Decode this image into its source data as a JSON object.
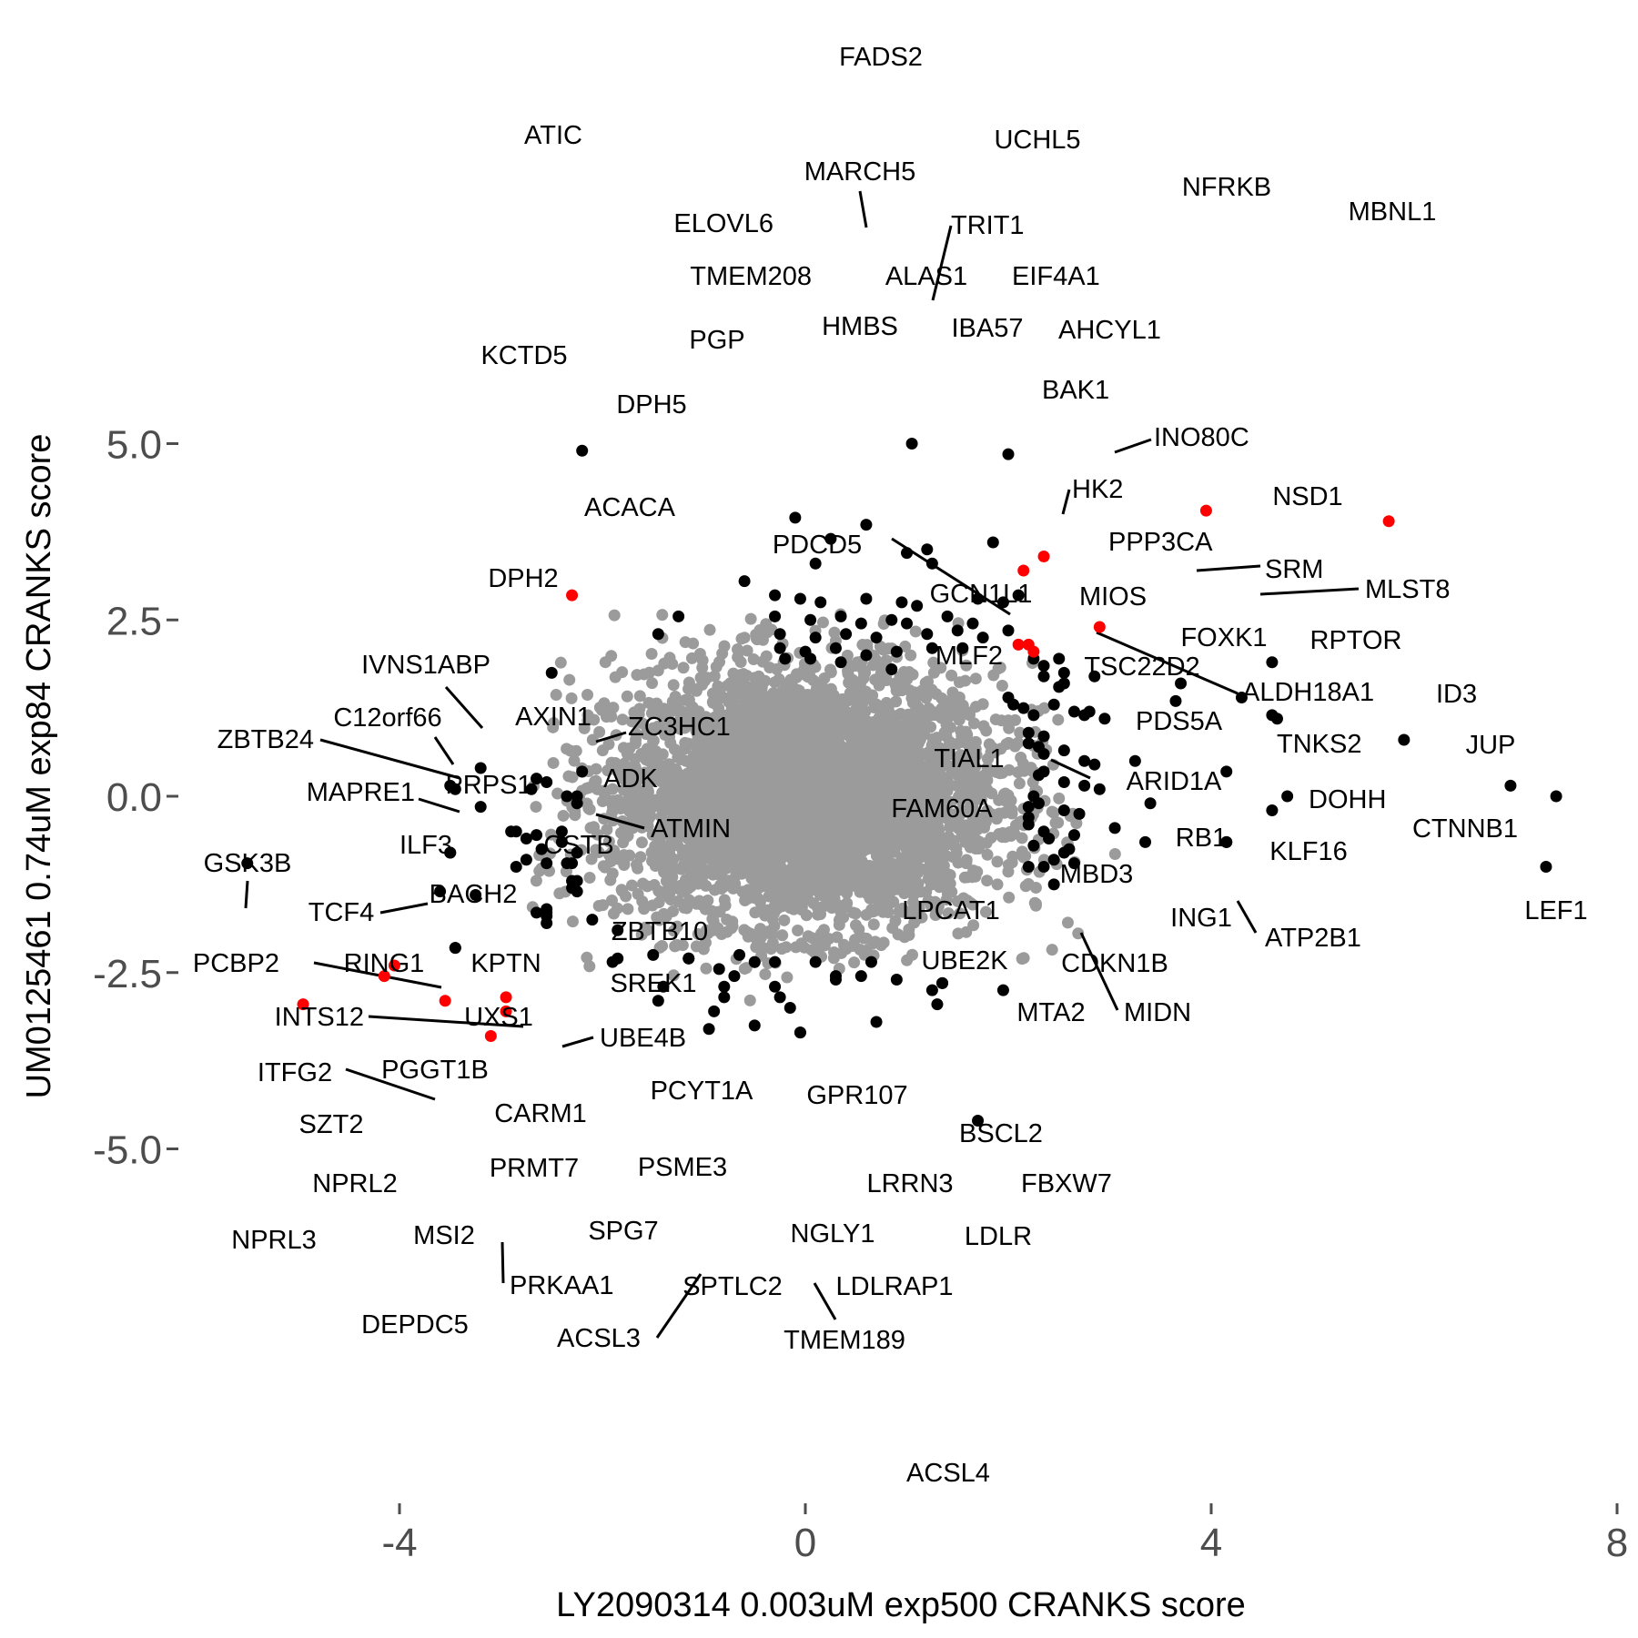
{
  "chart_data": {
    "type": "scatter",
    "xlabel": "LY2090314 0.003uM exp500 CRANKS score",
    "ylabel": "UM0125461 0.74uM exp84 CRANKS score",
    "xlim": [
      -6.0,
      8.0
    ],
    "ylim": [
      -5.0,
      5.0
    ],
    "x_ticks": [
      -4,
      0,
      4,
      8
    ],
    "x_tick_labels": [
      "-4",
      "0",
      "4",
      "8"
    ],
    "y_ticks": [
      5.0,
      2.5,
      0.0,
      -2.5,
      -5.0
    ],
    "y_tick_labels": [
      "5.0",
      "2.5",
      "0.0",
      "-2.5",
      "-5.0"
    ],
    "grid": false,
    "colors": {
      "background_points": "#9b9b9b",
      "highlight": "#000000",
      "highlight_red": "#ff0000"
    },
    "background_cloud": {
      "note_none": "",
      "center": [
        0.0,
        0.0
      ],
      "sd": [
        0.95,
        0.9
      ],
      "count": 4200
    },
    "labeled_points": [
      {
        "label": "FADS2",
        "x": 1.05,
        "y": 5.0,
        "color": "black"
      },
      {
        "label": "ATIC",
        "x": -2.2,
        "y": 4.9,
        "color": "black"
      },
      {
        "label": "UCHL5",
        "x": 2.0,
        "y": 4.85,
        "color": "black"
      },
      {
        "label": "NFRKB",
        "x": 3.95,
        "y": 4.05,
        "color": "red"
      },
      {
        "label": "MBNL1",
        "x": 5.75,
        "y": 3.9,
        "color": "red"
      },
      {
        "label": "MARCH5",
        "x": 0.6,
        "y": 3.85,
        "color": "black"
      },
      {
        "label": "ELOVL6",
        "x": -0.1,
        "y": 3.95,
        "color": "black"
      },
      {
        "label": "TRIT1",
        "x": 1.2,
        "y": 3.5,
        "color": "black"
      },
      {
        "label": "TMEM208",
        "x": 0.25,
        "y": 3.65,
        "color": "black"
      },
      {
        "label": "ALAS1",
        "x": 1.0,
        "y": 3.45,
        "color": "black"
      },
      {
        "label": "EIF4A1",
        "x": 1.85,
        "y": 3.6,
        "color": "black"
      },
      {
        "label": "HMBS",
        "x": 0.1,
        "y": 3.3,
        "color": "black"
      },
      {
        "label": "IBA57",
        "x": 1.25,
        "y": 3.3,
        "color": "black"
      },
      {
        "label": "AHCYL1",
        "x": 2.35,
        "y": 3.4,
        "color": "red"
      },
      {
        "label": "PGP",
        "x": -0.6,
        "y": 3.05,
        "color": "black"
      },
      {
        "label": "KCTD5",
        "x": -2.3,
        "y": 2.85,
        "color": "red"
      },
      {
        "label": "BAK1",
        "x": 2.1,
        "y": 2.85,
        "color": "black"
      },
      {
        "label": "DPH5",
        "x": -1.25,
        "y": 2.55,
        "color": "black"
      },
      {
        "label": "INO80C",
        "x": 2.9,
        "y": 2.4,
        "color": "red"
      },
      {
        "label": "HK2",
        "x": 2.5,
        "y": 1.95,
        "color": "black"
      },
      {
        "label": "NSD1",
        "x": 4.6,
        "y": 1.9,
        "color": "black"
      },
      {
        "label": "ACACA",
        "x": -1.45,
        "y": 2.3,
        "color": "black"
      },
      {
        "label": "PPP3CA",
        "x": 2.85,
        "y": 1.7,
        "color": "black"
      },
      {
        "label": "DPH2",
        "x": -2.5,
        "y": 1.75,
        "color": "black"
      },
      {
        "label": "PDCD5",
        "x": 0.85,
        "y": 1.8,
        "color": "black"
      },
      {
        "label": "SRM",
        "x": 3.7,
        "y": 1.6,
        "color": "black"
      },
      {
        "label": "MLST8",
        "x": 4.3,
        "y": 1.4,
        "color": "black"
      },
      {
        "label": "GCN1L1",
        "x": 2.05,
        "y": 1.3,
        "color": "black"
      },
      {
        "label": "MIOS",
        "x": 3.65,
        "y": 1.35,
        "color": "black"
      },
      {
        "label": "FOXK1",
        "x": 4.6,
        "y": 1.15,
        "color": "black"
      },
      {
        "label": "RPTOR",
        "x": 4.65,
        "y": 1.1,
        "color": "black"
      },
      {
        "label": "MLF2",
        "x": 2.25,
        "y": 1.15,
        "color": "black"
      },
      {
        "label": "TSC22D2",
        "x": 2.8,
        "y": 1.2,
        "color": "black"
      },
      {
        "label": "ALDH18A1",
        "x": 2.95,
        "y": 1.1,
        "color": "black"
      },
      {
        "label": "ID3",
        "x": 5.9,
        "y": 0.8,
        "color": "black"
      },
      {
        "label": "IVNS1ABP",
        "x": -3.2,
        "y": 0.4,
        "color": "black"
      },
      {
        "label": "C12orf66",
        "x": -3.5,
        "y": 0.15,
        "color": "black"
      },
      {
        "label": "AXIN1",
        "x": -2.65,
        "y": 0.25,
        "color": "black"
      },
      {
        "label": "ZC3HC1",
        "x": -2.2,
        "y": 0.35,
        "color": "black"
      },
      {
        "label": "ZBTB24",
        "x": -3.45,
        "y": 0.1,
        "color": "black"
      },
      {
        "label": "PRPS1",
        "x": -2.7,
        "y": 0.1,
        "color": "black"
      },
      {
        "label": "PDS5A",
        "x": 3.25,
        "y": 0.5,
        "color": "black"
      },
      {
        "label": "TNKS2",
        "x": 4.15,
        "y": 0.35,
        "color": "black"
      },
      {
        "label": "JUP",
        "x": 6.95,
        "y": 0.15,
        "color": "black"
      },
      {
        "label": "ADK",
        "x": -2.25,
        "y": 0.0,
        "color": "black"
      },
      {
        "label": "TIAL1",
        "x": 2.35,
        "y": 0.35,
        "color": "black"
      },
      {
        "label": "ARID1A",
        "x": 2.9,
        "y": 0.1,
        "color": "black"
      },
      {
        "label": "MAPRE1",
        "x": -3.2,
        "y": -0.15,
        "color": "black"
      },
      {
        "label": "DOHH",
        "x": 4.75,
        "y": 0.0,
        "color": "black"
      },
      {
        "label": "CTNNB1",
        "x": 7.4,
        "y": 0.0,
        "color": "black"
      },
      {
        "label": "ATMIN",
        "x": -2.25,
        "y": -0.1,
        "color": "black"
      },
      {
        "label": "FAM60A",
        "x": 2.2,
        "y": -0.15,
        "color": "black"
      },
      {
        "label": "RB1",
        "x": 3.4,
        "y": -0.1,
        "color": "black"
      },
      {
        "label": "KLF16",
        "x": 4.6,
        "y": -0.2,
        "color": "black"
      },
      {
        "label": "ILF3",
        "x": -2.9,
        "y": -0.5,
        "color": "black"
      },
      {
        "label": "CSTB",
        "x": -2.4,
        "y": -0.5,
        "color": "black"
      },
      {
        "label": "GSK3B",
        "x": -5.5,
        "y": -0.95,
        "color": "black"
      },
      {
        "label": "BACH2",
        "x": -3.5,
        "y": -0.8,
        "color": "black"
      },
      {
        "label": "MBD3",
        "x": 3.35,
        "y": -0.65,
        "color": "black"
      },
      {
        "label": "ING1",
        "x": 4.15,
        "y": -0.65,
        "color": "black"
      },
      {
        "label": "ATP2B1",
        "x": 4.15,
        "y": -0.65,
        "color": "black"
      },
      {
        "label": "TCF4",
        "x": -3.5,
        "y": -0.8,
        "color": "black"
      },
      {
        "label": "LPCAT1",
        "x": 2.6,
        "y": -0.75,
        "color": "black"
      },
      {
        "label": "LEF1",
        "x": 7.3,
        "y": -1.0,
        "color": "black"
      },
      {
        "label": "ZBTB10",
        "x": -2.3,
        "y": -0.95,
        "color": "black"
      },
      {
        "label": "PCBP2",
        "x": -3.6,
        "y": -1.35,
        "color": "black"
      },
      {
        "label": "RING1",
        "x": -3.25,
        "y": -1.4,
        "color": "black"
      },
      {
        "label": "KPTN",
        "x": -2.25,
        "y": -1.2,
        "color": "black"
      },
      {
        "label": "UBE2K",
        "x": 2.35,
        "y": -1.0,
        "color": "black"
      },
      {
        "label": "CDKN1B",
        "x": 2.65,
        "y": -0.95,
        "color": "black"
      },
      {
        "label": "SREK1",
        "x": -2.25,
        "y": -1.35,
        "color": "black"
      },
      {
        "label": "MIDN",
        "x": 2.55,
        "y": -0.8,
        "color": "black"
      },
      {
        "label": "INTS12",
        "x": -2.65,
        "y": -1.65,
        "color": "black"
      },
      {
        "label": "UXS1",
        "x": -2.55,
        "y": -1.65,
        "color": "black"
      },
      {
        "label": "MTA2",
        "x": 2.45,
        "y": -1.25,
        "color": "black"
      },
      {
        "label": "UBE4B",
        "x": -2.55,
        "y": -1.8,
        "color": "black"
      },
      {
        "label": "PGGT1B",
        "x": -3.45,
        "y": -2.15,
        "color": "black"
      },
      {
        "label": "ITFG2",
        "x": -3.45,
        "y": -2.15,
        "color": "black"
      },
      {
        "label": "PCYT1A",
        "x": -1.15,
        "y": -2.3,
        "color": "black"
      },
      {
        "label": "CARM1",
        "x": -1.85,
        "y": -2.3,
        "color": "black"
      },
      {
        "label": "GPR107",
        "x": 0.65,
        "y": -2.35,
        "color": "black"
      },
      {
        "label": "SZT2",
        "x": -4.05,
        "y": -2.4,
        "color": "red"
      },
      {
        "label": "BSCL2",
        "x": 1.35,
        "y": -2.65,
        "color": "black"
      },
      {
        "label": "PRMT7",
        "x": -2.95,
        "y": -2.85,
        "color": "red"
      },
      {
        "label": "PSME3",
        "x": -1.4,
        "y": -2.7,
        "color": "black"
      },
      {
        "label": "NPRL2",
        "x": -4.15,
        "y": -2.55,
        "color": "red"
      },
      {
        "label": "LRRN3",
        "x": 1.35,
        "y": -2.65,
        "color": "black"
      },
      {
        "label": "FBXW7",
        "x": 1.95,
        "y": -2.75,
        "color": "black"
      },
      {
        "label": "MSI2",
        "x": -3.55,
        "y": -2.9,
        "color": "red"
      },
      {
        "label": "NPRL3",
        "x": -4.95,
        "y": -2.95,
        "color": "red"
      },
      {
        "label": "SPG7",
        "x": -1.45,
        "y": -2.9,
        "color": "black"
      },
      {
        "label": "NGLY1",
        "x": 0.7,
        "y": -3.2,
        "color": "black"
      },
      {
        "label": "LDLR",
        "x": 1.3,
        "y": -2.95,
        "color": "black"
      },
      {
        "label": "PRKAA1",
        "x": -2.95,
        "y": -3.05,
        "color": "red"
      },
      {
        "label": "DEPDC5",
        "x": -3.1,
        "y": -3.4,
        "color": "red"
      },
      {
        "label": "SPTLC2",
        "x": -0.5,
        "y": -3.25,
        "color": "black"
      },
      {
        "label": "LDLRAP1",
        "x": -0.05,
        "y": -3.35,
        "color": "black"
      },
      {
        "label": "ACSL3",
        "x": -0.95,
        "y": -3.3,
        "color": "black"
      },
      {
        "label": "TMEM189",
        "x": -0.05,
        "y": -3.35,
        "color": "black"
      },
      {
        "label": "ACSL4",
        "x": 1.7,
        "y": -4.6,
        "color": "black"
      }
    ],
    "extra_points": {
      "black": [
        [
          -0.3,
          2.85
        ],
        [
          -0.05,
          2.8
        ],
        [
          0.15,
          2.75
        ],
        [
          0.6,
          2.8
        ],
        [
          0.95,
          2.75
        ],
        [
          1.1,
          2.7
        ],
        [
          1.7,
          2.8
        ],
        [
          1.95,
          2.75
        ],
        [
          -0.3,
          2.55
        ],
        [
          0.05,
          2.5
        ],
        [
          0.35,
          2.55
        ],
        [
          0.55,
          2.45
        ],
        [
          0.85,
          2.5
        ],
        [
          1.0,
          2.45
        ],
        [
          1.4,
          2.55
        ],
        [
          1.65,
          2.45
        ],
        [
          2.0,
          2.35
        ],
        [
          -0.25,
          2.3
        ],
        [
          0.1,
          2.25
        ],
        [
          0.4,
          2.3
        ],
        [
          0.7,
          2.25
        ],
        [
          1.2,
          2.3
        ],
        [
          1.5,
          2.35
        ],
        [
          1.75,
          2.25
        ],
        [
          -0.25,
          2.1
        ],
        [
          0.0,
          2.05
        ],
        [
          0.3,
          2.1
        ],
        [
          0.6,
          2.0
        ],
        [
          0.9,
          2.05
        ],
        [
          1.25,
          2.1
        ],
        [
          1.55,
          2.1
        ],
        [
          -0.2,
          1.95
        ],
        [
          0.05,
          1.95
        ],
        [
          0.35,
          1.9
        ],
        [
          2.25,
          1.95
        ],
        [
          2.35,
          1.85
        ],
        [
          2.55,
          1.75
        ],
        [
          2.35,
          1.7
        ],
        [
          2.55,
          1.6
        ],
        [
          2.5,
          1.55
        ],
        [
          2.0,
          1.4
        ],
        [
          2.15,
          1.25
        ],
        [
          2.45,
          1.3
        ],
        [
          2.65,
          1.2
        ],
        [
          2.75,
          1.15
        ],
        [
          2.2,
          0.9
        ],
        [
          2.35,
          0.85
        ],
        [
          2.2,
          0.75
        ],
        [
          2.3,
          0.7
        ],
        [
          2.55,
          0.65
        ],
        [
          2.35,
          0.6
        ],
        [
          2.75,
          0.5
        ],
        [
          2.85,
          0.45
        ],
        [
          2.3,
          0.3
        ],
        [
          2.55,
          0.2
        ],
        [
          2.75,
          0.15
        ],
        [
          2.25,
          0.0
        ],
        [
          2.3,
          -0.1
        ],
        [
          2.55,
          -0.2
        ],
        [
          2.7,
          -0.25
        ],
        [
          2.2,
          -0.3
        ],
        [
          2.2,
          -0.4
        ],
        [
          2.35,
          -0.5
        ],
        [
          2.4,
          -0.6
        ],
        [
          2.65,
          -0.55
        ],
        [
          3.05,
          -0.45
        ],
        [
          2.25,
          -0.7
        ],
        [
          2.45,
          -0.9
        ],
        [
          2.2,
          -1.0
        ],
        [
          -2.55,
          0.2
        ],
        [
          -2.35,
          0.0
        ],
        [
          -2.85,
          -0.5
        ],
        [
          -2.65,
          -0.55
        ],
        [
          -2.75,
          -0.6
        ],
        [
          -2.4,
          -0.65
        ],
        [
          -2.6,
          -0.75
        ],
        [
          -2.25,
          -0.8
        ],
        [
          -2.75,
          -0.9
        ],
        [
          -2.55,
          -0.95
        ],
        [
          -2.35,
          -0.95
        ],
        [
          -2.85,
          -1.0
        ],
        [
          -2.3,
          -1.2
        ],
        [
          -2.3,
          -1.3
        ],
        [
          -2.55,
          -1.6
        ],
        [
          -2.55,
          -1.7
        ],
        [
          -2.1,
          -1.75
        ],
        [
          -1.85,
          -1.9
        ],
        [
          -1.9,
          -2.35
        ],
        [
          -1.5,
          -2.25
        ],
        [
          -1.15,
          -2.3
        ],
        [
          -0.65,
          -2.25
        ],
        [
          -0.5,
          -2.35
        ],
        [
          -0.3,
          -2.35
        ],
        [
          0.1,
          -2.35
        ],
        [
          0.3,
          -2.55
        ],
        [
          0.3,
          -2.6
        ],
        [
          -0.85,
          -2.45
        ],
        [
          -0.7,
          -2.55
        ],
        [
          -0.8,
          -2.7
        ],
        [
          -0.3,
          -2.7
        ],
        [
          -0.8,
          -2.85
        ],
        [
          -0.25,
          -2.85
        ],
        [
          0.55,
          -2.55
        ],
        [
          0.9,
          -2.6
        ],
        [
          1.25,
          -2.75
        ],
        [
          -0.15,
          -3.0
        ],
        [
          -0.9,
          -3.05
        ]
      ],
      "red": [
        [
          2.1,
          2.15
        ],
        [
          2.25,
          2.05
        ],
        [
          2.2,
          2.15
        ],
        [
          2.15,
          3.2
        ]
      ]
    }
  }
}
